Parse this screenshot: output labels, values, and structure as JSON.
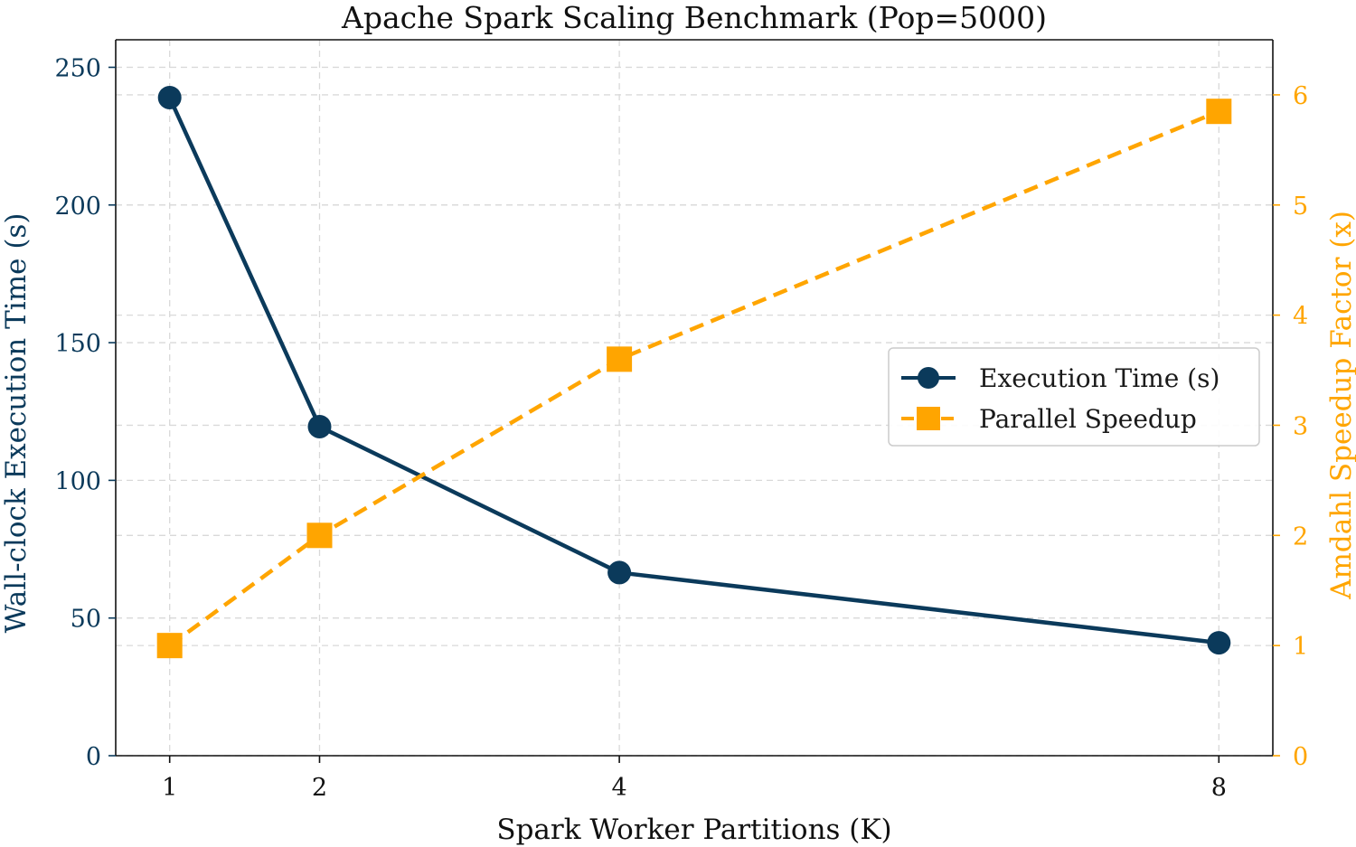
{
  "chart_data": {
    "type": "line",
    "title": "Apache Spark Scaling Benchmark (Pop=5000)",
    "xlabel": "Spark Worker Partitions (K)",
    "ylabel_left": "Wall-clock Execution Time (s)",
    "ylabel_right": "Amdahl Speedup Factor (x)",
    "x": [
      1,
      2,
      4,
      8
    ],
    "x_tick_labels": [
      "1",
      "2",
      "4",
      "8"
    ],
    "xlim": [
      0.64,
      8.36
    ],
    "ylim_left": [
      0,
      260
    ],
    "yticks_left": [
      0,
      50,
      100,
      150,
      200,
      250
    ],
    "ylim_right": [
      0,
      6.5
    ],
    "yticks_right": [
      0,
      1,
      2,
      3,
      4,
      5,
      6
    ],
    "grid": true,
    "legend_position": "center-right",
    "series": [
      {
        "name": "Execution Time (s)",
        "axis": "left",
        "values": [
          239,
          119.5,
          66.5,
          41
        ],
        "color": "#0b3a5b",
        "marker": "circle",
        "linestyle": "solid"
      },
      {
        "name": "Parallel Speedup",
        "axis": "right",
        "values": [
          1.0,
          2.0,
          3.6,
          5.85
        ],
        "color": "#ffa500",
        "marker": "square",
        "linestyle": "dashed"
      }
    ]
  }
}
